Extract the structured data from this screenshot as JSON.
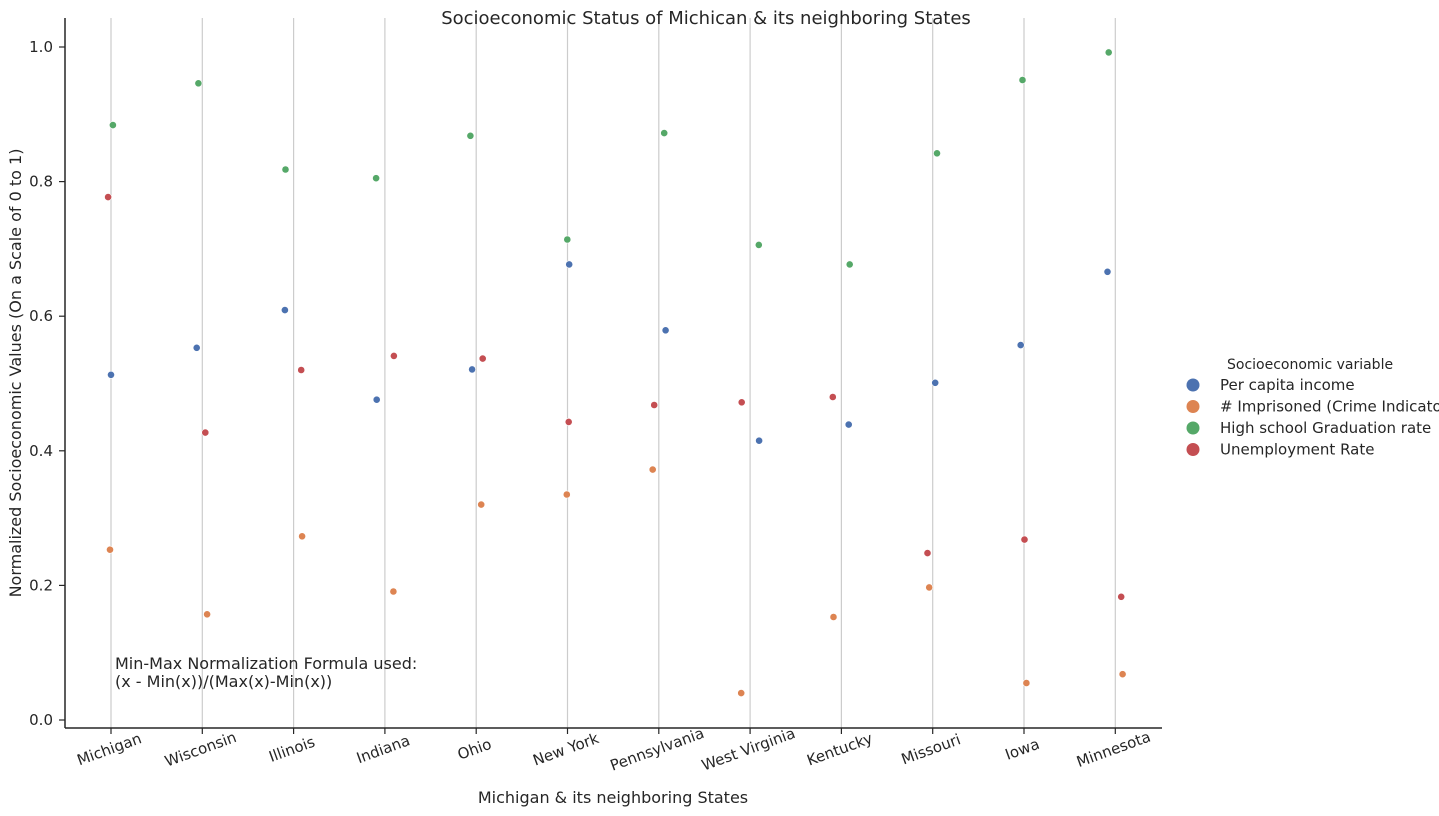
{
  "chart_data": {
    "type": "scatter",
    "title": "Socioeconomic Status of Michican & its neighboring States",
    "xlabel": "Michigan & its neighboring States",
    "ylabel": "Normalized Socioeconomic Values (On a Scale of 0 to 1)",
    "ylim": [
      0.0,
      1.0
    ],
    "yticks": [
      "0.0",
      "0.2",
      "0.4",
      "0.6",
      "0.8",
      "1.0"
    ],
    "grid": "vertical",
    "categories": [
      "Michigan",
      "Wisconsin",
      "Illinois",
      "Indiana",
      "Ohio",
      "New York",
      "Pennsylvania",
      "West Virginia",
      "Kentucky",
      "Missouri",
      "Iowa",
      "Minnesota"
    ],
    "legend": {
      "title": "Socioeconomic variable",
      "placement": "right"
    },
    "series": [
      {
        "name": "Per capita income",
        "color": "#4c72b0",
        "values": [
          0.513,
          0.553,
          0.609,
          0.476,
          0.521,
          0.677,
          0.579,
          0.415,
          0.439,
          0.501,
          0.557,
          0.666
        ]
      },
      {
        "name": "# Imprisoned (Crime Indicator)",
        "color": "#dd8452",
        "values": [
          0.253,
          0.157,
          0.273,
          0.191,
          0.32,
          0.335,
          0.372,
          0.04,
          0.153,
          0.197,
          0.055,
          0.068
        ]
      },
      {
        "name": "High school Graduation rate",
        "color": "#55a868",
        "values": [
          0.884,
          0.946,
          0.818,
          0.805,
          0.868,
          0.714,
          0.872,
          0.706,
          0.677,
          0.842,
          0.951,
          0.992
        ]
      },
      {
        "name": "Unemployment Rate",
        "color": "#c44e52",
        "values": [
          0.777,
          0.427,
          0.52,
          0.541,
          0.537,
          0.443,
          0.468,
          0.472,
          0.48,
          0.248,
          0.268,
          0.183
        ]
      }
    ],
    "annotation": [
      "Min-Max Normalization Formula used:",
      "(x - Min(x))/(Max(x)-Min(x))"
    ]
  }
}
